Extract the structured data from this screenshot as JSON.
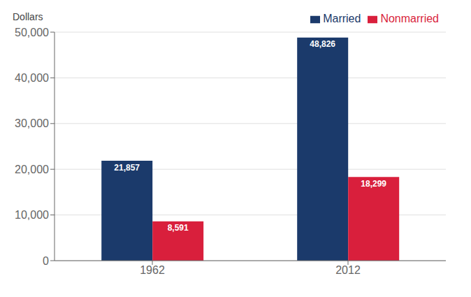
{
  "chart_data": {
    "type": "bar",
    "categories": [
      "1962",
      "2012"
    ],
    "series": [
      {
        "name": "Married",
        "color": "#1B3A6B",
        "values": [
          21857,
          48826
        ],
        "value_labels": [
          "21,857",
          "48,826"
        ]
      },
      {
        "name": "Nonmarried",
        "color": "#D91F3C",
        "values": [
          8591,
          18299
        ],
        "value_labels": [
          "8,591",
          "18,299"
        ]
      }
    ],
    "ylabel": "Dollars",
    "ylim": [
      0,
      50000
    ],
    "yticks": [
      0,
      {
        "value": 10000,
        "label": "10,000"
      },
      {
        "value": 20000,
        "label": "20,000"
      },
      {
        "value": 30000,
        "label": "30,000"
      },
      {
        "value": 40000,
        "label": "40,000"
      },
      {
        "value": 50000,
        "label": "50,000"
      }
    ],
    "grid": true,
    "legend": "upper right",
    "data_labels": true
  }
}
